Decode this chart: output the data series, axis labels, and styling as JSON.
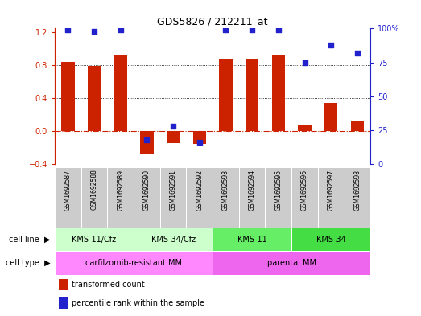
{
  "title": "GDS5826 / 212211_at",
  "samples": [
    "GSM1692587",
    "GSM1692588",
    "GSM1692589",
    "GSM1692590",
    "GSM1692591",
    "GSM1692592",
    "GSM1692593",
    "GSM1692594",
    "GSM1692595",
    "GSM1692596",
    "GSM1692597",
    "GSM1692598"
  ],
  "transformed_count": [
    0.84,
    0.79,
    0.93,
    -0.27,
    -0.14,
    -0.15,
    0.88,
    0.88,
    0.92,
    0.07,
    0.35,
    0.12
  ],
  "percentile_rank": [
    99,
    98,
    99,
    18,
    28,
    16,
    99,
    99,
    99,
    75,
    88,
    82
  ],
  "bar_color": "#cc2200",
  "dot_color": "#2222cc",
  "zero_line_color": "#cc2200",
  "grid_color": "#000000",
  "ylim_left": [
    -0.4,
    1.25
  ],
  "ylim_right": [
    0,
    100
  ],
  "yticks_left": [
    -0.4,
    0.0,
    0.4,
    0.8,
    1.2
  ],
  "yticks_right": [
    0,
    25,
    50,
    75,
    100
  ],
  "sample_bg_color": "#cccccc",
  "cell_line_groups": [
    {
      "label": "KMS-11/Cfz",
      "start": 0,
      "end": 3,
      "color": "#ccffcc"
    },
    {
      "label": "KMS-34/Cfz",
      "start": 3,
      "end": 6,
      "color": "#ccffcc"
    },
    {
      "label": "KMS-11",
      "start": 6,
      "end": 9,
      "color": "#66ee66"
    },
    {
      "label": "KMS-34",
      "start": 9,
      "end": 12,
      "color": "#44dd44"
    }
  ],
  "cell_type_groups": [
    {
      "label": "carfilzomib-resistant MM",
      "start": 0,
      "end": 6,
      "color": "#ff88ff"
    },
    {
      "label": "parental MM",
      "start": 6,
      "end": 12,
      "color": "#ee66ee"
    }
  ],
  "legend_items": [
    {
      "color": "#cc2200",
      "label": "transformed count"
    },
    {
      "color": "#2222cc",
      "label": "percentile rank within the sample"
    }
  ],
  "bar_width": 0.5,
  "dot_size": 22
}
